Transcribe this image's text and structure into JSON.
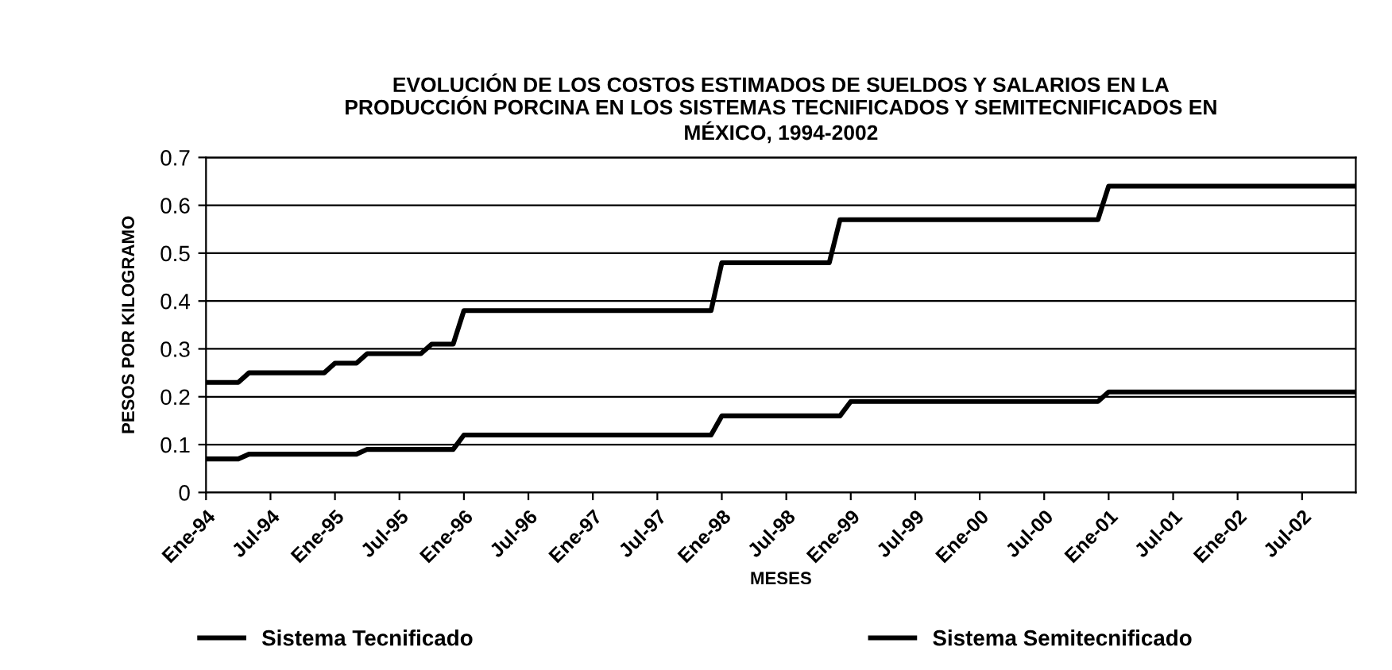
{
  "chart_data": {
    "type": "line",
    "title": "EVOLUCIÓN DE LOS COSTOS ESTIMADOS DE SUELDOS Y SALARIOS EN LA\nPRODUCCIÓN PORCINA EN LOS SISTEMAS TECNIFICADOS Y SEMITECNIFICADOS EN\nMÉXICO, 1994-2002",
    "xlabel": "MESES",
    "ylabel": "PESOS POR KILOGRAMO",
    "categories": [
      "Ene-94",
      null,
      null,
      null,
      null,
      null,
      "Jul-94",
      null,
      null,
      null,
      null,
      null,
      "Ene-95",
      null,
      null,
      null,
      null,
      null,
      "Jul-95",
      null,
      null,
      null,
      null,
      null,
      "Ene-96",
      null,
      null,
      null,
      null,
      null,
      "Jul-96",
      null,
      null,
      null,
      null,
      null,
      "Ene-97",
      null,
      null,
      null,
      null,
      null,
      "Jul-97",
      null,
      null,
      null,
      null,
      null,
      "Ene-98",
      null,
      null,
      null,
      null,
      null,
      "Jul-98",
      null,
      null,
      null,
      null,
      null,
      "Ene-99",
      null,
      null,
      null,
      null,
      null,
      "Jul-99",
      null,
      null,
      null,
      null,
      null,
      "Ene-00",
      null,
      null,
      null,
      null,
      null,
      "Jul-00",
      null,
      null,
      null,
      null,
      null,
      "Ene-01",
      null,
      null,
      null,
      null,
      null,
      "Jul-01",
      null,
      null,
      null,
      null,
      null,
      "Ene-02",
      null,
      null,
      null,
      null,
      null,
      "Jul-02",
      null,
      null,
      null,
      null,
      null
    ],
    "series": [
      {
        "name": "Sistema Tecnificado",
        "color": "#000000",
        "values": [
          0.23,
          0.23,
          0.23,
          0.23,
          0.25,
          0.25,
          0.25,
          0.25,
          0.25,
          0.25,
          0.25,
          0.25,
          0.27,
          0.27,
          0.27,
          0.29,
          0.29,
          0.29,
          0.29,
          0.29,
          0.29,
          0.31,
          0.31,
          0.31,
          0.38,
          0.38,
          0.38,
          0.38,
          0.38,
          0.38,
          0.38,
          0.38,
          0.38,
          0.38,
          0.38,
          0.38,
          0.38,
          0.38,
          0.38,
          0.38,
          0.38,
          0.38,
          0.38,
          0.38,
          0.38,
          0.38,
          0.38,
          0.38,
          0.48,
          0.48,
          0.48,
          0.48,
          0.48,
          0.48,
          0.48,
          0.48,
          0.48,
          0.48,
          0.48,
          0.57,
          0.57,
          0.57,
          0.57,
          0.57,
          0.57,
          0.57,
          0.57,
          0.57,
          0.57,
          0.57,
          0.57,
          0.57,
          0.57,
          0.57,
          0.57,
          0.57,
          0.57,
          0.57,
          0.57,
          0.57,
          0.57,
          0.57,
          0.57,
          0.57,
          0.64,
          0.64,
          0.64,
          0.64,
          0.64,
          0.64,
          0.64,
          0.64,
          0.64,
          0.64,
          0.64,
          0.64,
          0.64,
          0.64,
          0.64,
          0.64,
          0.64,
          0.64,
          0.64,
          0.64,
          0.64,
          0.64,
          0.64,
          0.64
        ]
      },
      {
        "name": "Sistema Semitecnificado",
        "color": "#000000",
        "values": [
          0.07,
          0.07,
          0.07,
          0.07,
          0.08,
          0.08,
          0.08,
          0.08,
          0.08,
          0.08,
          0.08,
          0.08,
          0.08,
          0.08,
          0.08,
          0.09,
          0.09,
          0.09,
          0.09,
          0.09,
          0.09,
          0.09,
          0.09,
          0.09,
          0.12,
          0.12,
          0.12,
          0.12,
          0.12,
          0.12,
          0.12,
          0.12,
          0.12,
          0.12,
          0.12,
          0.12,
          0.12,
          0.12,
          0.12,
          0.12,
          0.12,
          0.12,
          0.12,
          0.12,
          0.12,
          0.12,
          0.12,
          0.12,
          0.16,
          0.16,
          0.16,
          0.16,
          0.16,
          0.16,
          0.16,
          0.16,
          0.16,
          0.16,
          0.16,
          0.16,
          0.19,
          0.19,
          0.19,
          0.19,
          0.19,
          0.19,
          0.19,
          0.19,
          0.19,
          0.19,
          0.19,
          0.19,
          0.19,
          0.19,
          0.19,
          0.19,
          0.19,
          0.19,
          0.19,
          0.19,
          0.19,
          0.19,
          0.19,
          0.19,
          0.21,
          0.21,
          0.21,
          0.21,
          0.21,
          0.21,
          0.21,
          0.21,
          0.21,
          0.21,
          0.21,
          0.21,
          0.21,
          0.21,
          0.21,
          0.21,
          0.21,
          0.21,
          0.21,
          0.21,
          0.21,
          0.21,
          0.21,
          0.21
        ]
      }
    ],
    "ylim": [
      0,
      0.7
    ],
    "yticks": [
      0,
      0.1,
      0.2,
      0.3,
      0.4,
      0.5,
      0.6,
      0.7
    ],
    "grid": "y",
    "legend": "bottom",
    "line_style": "solid",
    "marker": "none"
  }
}
